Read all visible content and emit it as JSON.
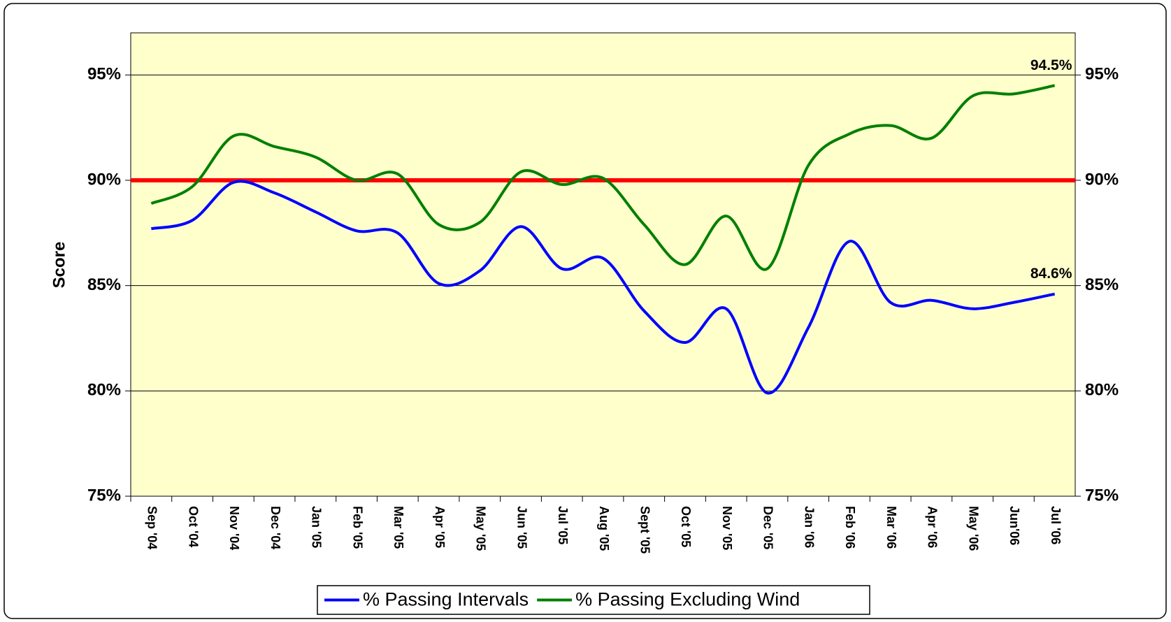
{
  "chart_data": {
    "type": "line",
    "y_label": "Score",
    "categories": [
      "Sep '04",
      "Oct '04",
      "Nov '04",
      "Dec '04",
      "Jan '05",
      "Feb '05",
      "Mar '05",
      "Apr '05",
      "May '05",
      "Jun '05",
      "Jul '05",
      "Aug '05",
      "Sept '05",
      "Oct '05",
      "Nov '05",
      "Dec '05",
      "Jan '06",
      "Feb '06",
      "Mar '06",
      "Apr '06",
      "May '06",
      "Jun'06",
      "Jul '06"
    ],
    "series": [
      {
        "name": "% Passing Intervals",
        "color": "#0000ff",
        "values": [
          87.7,
          88.1,
          89.9,
          89.4,
          88.5,
          87.6,
          87.5,
          85.1,
          85.7,
          87.8,
          85.8,
          86.3,
          83.8,
          82.3,
          83.9,
          79.9,
          83.0,
          87.1,
          84.2,
          84.3,
          83.9,
          84.2,
          84.6
        ],
        "value_labels": [
          null,
          null,
          null,
          null,
          null,
          null,
          null,
          null,
          null,
          null,
          null,
          null,
          null,
          null,
          null,
          null,
          null,
          null,
          null,
          null,
          null,
          null,
          "84.6%"
        ]
      },
      {
        "name": "% Passing Excluding Wind",
        "color": "#008000",
        "values": [
          88.9,
          89.7,
          92.1,
          91.6,
          91.1,
          90.0,
          90.3,
          87.9,
          88.0,
          90.4,
          89.8,
          90.1,
          87.9,
          86.0,
          88.3,
          85.8,
          90.7,
          92.2,
          92.6,
          92.0,
          94.0,
          94.1,
          94.5
        ],
        "value_labels": [
          null,
          null,
          null,
          null,
          null,
          null,
          null,
          null,
          null,
          null,
          null,
          null,
          null,
          null,
          null,
          null,
          null,
          null,
          null,
          null,
          null,
          null,
          "94.5%"
        ]
      }
    ],
    "reference_line": {
      "value": 90,
      "color": "#ff0000"
    },
    "ylim": [
      75,
      97
    ],
    "yticks": [
      {
        "value": 75,
        "label": "75%"
      },
      {
        "value": 80,
        "label": "80%"
      },
      {
        "value": 85,
        "label": "85%"
      },
      {
        "value": 90,
        "label": "90%"
      },
      {
        "value": 95,
        "label": "95%"
      }
    ],
    "grid": true,
    "plot_background": "#ffffcc",
    "legend": "bottom"
  }
}
